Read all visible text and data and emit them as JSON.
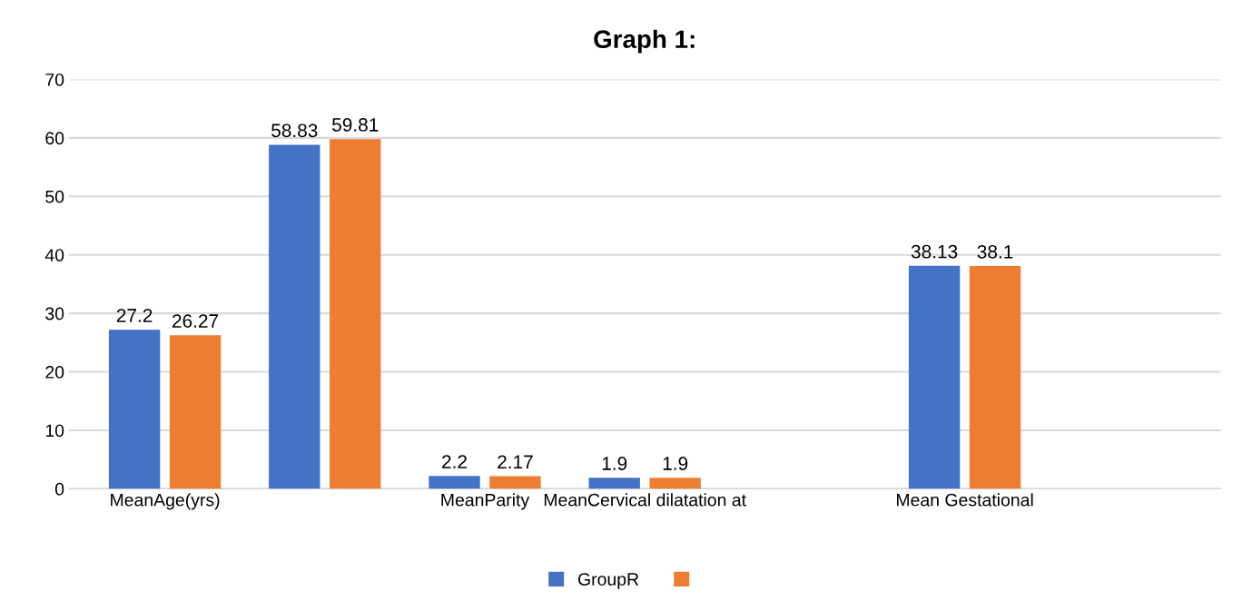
{
  "chart_data": {
    "type": "bar",
    "title": "Graph 1:",
    "categories": [
      "MeanAge(yrs)",
      null,
      "MeanParity",
      "MeanCervical dilatation at",
      null,
      "Mean Gestational",
      null
    ],
    "series": [
      {
        "name": "GroupR",
        "color": "#4472c4",
        "values": [
          27.2,
          58.83,
          2.2,
          1.9,
          null,
          38.13,
          null
        ]
      },
      {
        "color": "#ed7d31",
        "values": [
          26.27,
          59.81,
          2.17,
          1.9,
          null,
          38.1,
          null
        ]
      }
    ],
    "ylim": [
      0,
      70
    ],
    "yticks": [
      0,
      10,
      20,
      30,
      40,
      50,
      60,
      70
    ],
    "grid": "y",
    "legend": "bottom",
    "data_labels": true
  }
}
